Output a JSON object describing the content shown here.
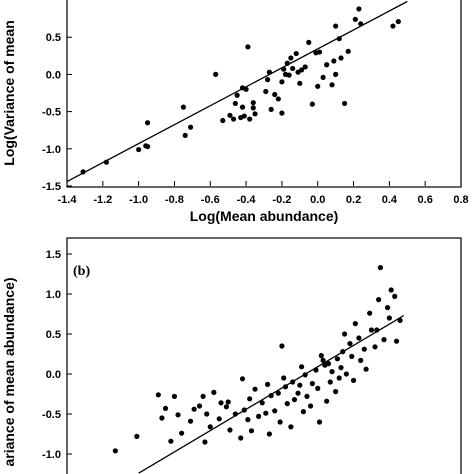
{
  "chart_data": [
    {
      "type": "scatter",
      "panel_label": "",
      "xlabel": "Log(Mean abundance)",
      "ylabel": "Log(Variance of mean",
      "xlim": [
        -1.4,
        0.8
      ],
      "ylim": [
        -1.5,
        1.0
      ],
      "xticks": [
        -1.4,
        -1.2,
        -1.0,
        -0.8,
        -0.6,
        -0.4,
        -0.2,
        0.0,
        0.2,
        0.4,
        0.6,
        0.8
      ],
      "xtick_labels": [
        "-1.4",
        "-1.2",
        "-1.0",
        "-0.8",
        "-0.6",
        "-0.4",
        "-0.2",
        "0.0",
        "0.2",
        "0.4",
        "0.6",
        "0.8"
      ],
      "yticks": [
        -1.5,
        -1.0,
        -0.5,
        0.0,
        0.5
      ],
      "ytick_labels": [
        "-1.5",
        "-1.0",
        "-0.5",
        "0.0",
        "0.5"
      ],
      "fit_line": {
        "x": [
          -1.4,
          0.5
        ],
        "y": [
          -1.44,
          0.98
        ]
      },
      "points": [
        [
          -1.31,
          -1.31
        ],
        [
          -1.18,
          -1.18
        ],
        [
          -1.0,
          -1.01
        ],
        [
          -0.96,
          -0.96
        ],
        [
          -0.95,
          -0.97
        ],
        [
          -0.95,
          -0.65
        ],
        [
          -0.75,
          -0.44
        ],
        [
          -0.74,
          -0.82
        ],
        [
          -0.71,
          -0.71
        ],
        [
          -0.57,
          0.0
        ],
        [
          -0.53,
          -0.62
        ],
        [
          -0.49,
          -0.55
        ],
        [
          -0.47,
          -0.6
        ],
        [
          -0.46,
          -0.39
        ],
        [
          -0.45,
          -0.28
        ],
        [
          -0.43,
          -0.58
        ],
        [
          -0.42,
          -0.44
        ],
        [
          -0.42,
          -0.18
        ],
        [
          -0.41,
          -0.56
        ],
        [
          -0.4,
          -0.2
        ],
        [
          -0.39,
          0.37
        ],
        [
          -0.38,
          -0.6
        ],
        [
          -0.36,
          -0.45
        ],
        [
          -0.36,
          -0.38
        ],
        [
          -0.35,
          -0.53
        ],
        [
          -0.29,
          -0.23
        ],
        [
          -0.28,
          -0.07
        ],
        [
          -0.27,
          0.03
        ],
        [
          -0.26,
          -0.47
        ],
        [
          -0.24,
          -0.27
        ],
        [
          -0.22,
          -0.33
        ],
        [
          -0.2,
          -0.1
        ],
        [
          -0.2,
          -0.52
        ],
        [
          -0.19,
          0.07
        ],
        [
          -0.18,
          0.0
        ],
        [
          -0.17,
          0.15
        ],
        [
          -0.16,
          -0.01
        ],
        [
          -0.15,
          0.22
        ],
        [
          -0.14,
          0.08
        ],
        [
          -0.12,
          0.28
        ],
        [
          -0.11,
          0.03
        ],
        [
          -0.1,
          -0.12
        ],
        [
          -0.09,
          0.06
        ],
        [
          -0.07,
          0.1
        ],
        [
          -0.05,
          0.43
        ],
        [
          -0.03,
          -0.4
        ],
        [
          -0.01,
          0.29
        ],
        [
          0.0,
          -0.16
        ],
        [
          0.01,
          0.3
        ],
        [
          0.03,
          -0.04
        ],
        [
          0.05,
          0.13
        ],
        [
          0.08,
          -0.14
        ],
        [
          0.09,
          0.18
        ],
        [
          0.1,
          0.0
        ],
        [
          0.1,
          0.65
        ],
        [
          0.12,
          0.48
        ],
        [
          0.13,
          0.22
        ],
        [
          0.15,
          -0.39
        ],
        [
          0.17,
          0.31
        ],
        [
          0.21,
          0.74
        ],
        [
          0.23,
          0.88
        ],
        [
          0.24,
          0.68
        ],
        [
          0.42,
          0.65
        ],
        [
          0.45,
          0.71
        ]
      ]
    },
    {
      "type": "scatter",
      "panel_label": "(b)",
      "xlabel": "",
      "ylabel": "ariance of mean abundance)",
      "xlim": [
        -1.4,
        0.8
      ],
      "ylim": [
        -1.25,
        1.5
      ],
      "xticks": [],
      "xtick_labels": [],
      "yticks": [
        -1.0,
        -0.5,
        0.0,
        0.5,
        1.0,
        1.5
      ],
      "ytick_labels": [
        "-1.0",
        "-0.5",
        "0.0",
        "0.5",
        "1.0",
        "1.5"
      ],
      "fit_line": {
        "x": [
          -1.0,
          0.48
        ],
        "y": [
          -1.24,
          0.73
        ]
      },
      "points": [
        [
          -1.13,
          -0.96
        ],
        [
          -1.01,
          -0.78
        ],
        [
          -0.89,
          -0.26
        ],
        [
          -0.87,
          -0.55
        ],
        [
          -0.85,
          -0.43
        ],
        [
          -0.82,
          -0.84
        ],
        [
          -0.8,
          -0.28
        ],
        [
          -0.78,
          -0.51
        ],
        [
          -0.76,
          -0.74
        ],
        [
          -0.71,
          -0.59
        ],
        [
          -0.69,
          -0.44
        ],
        [
          -0.66,
          -0.4
        ],
        [
          -0.63,
          -0.85
        ],
        [
          -0.62,
          -0.5
        ],
        [
          -0.6,
          -0.66
        ],
        [
          -0.58,
          -0.23
        ],
        [
          -0.55,
          -0.56
        ],
        [
          -0.54,
          -0.36
        ],
        [
          -0.51,
          -0.41
        ],
        [
          -0.49,
          -0.7
        ],
        [
          -0.46,
          -0.5
        ],
        [
          -0.43,
          -0.8
        ],
        [
          -0.42,
          -0.06
        ],
        [
          -0.41,
          -0.45
        ],
        [
          -0.38,
          -0.31
        ],
        [
          -0.37,
          -0.71
        ],
        [
          -0.35,
          -0.19
        ],
        [
          -0.33,
          -0.53
        ],
        [
          -0.31,
          -0.36
        ],
        [
          -0.28,
          -0.13
        ],
        [
          -0.27,
          -0.75
        ],
        [
          -0.26,
          -0.27
        ],
        [
          -0.24,
          -0.46
        ],
        [
          -0.22,
          -0.24
        ],
        [
          -0.21,
          -0.6
        ],
        [
          -0.2,
          0.35
        ],
        [
          -0.18,
          -0.16
        ],
        [
          -0.17,
          -0.37
        ],
        [
          -0.15,
          -0.66
        ],
        [
          -0.14,
          -0.1
        ],
        [
          -0.13,
          -0.32
        ],
        [
          -0.11,
          -0.24
        ],
        [
          -0.1,
          -0.14
        ],
        [
          -0.08,
          -0.47
        ],
        [
          -0.07,
          -0.01
        ],
        [
          -0.06,
          -0.28
        ],
        [
          -0.04,
          -0.4
        ],
        [
          -0.03,
          -0.12
        ],
        [
          -0.01,
          0.05
        ],
        [
          0.0,
          -0.18
        ],
        [
          0.01,
          -0.6
        ],
        [
          0.02,
          0.23
        ],
        [
          0.04,
          0.11
        ],
        [
          0.05,
          -0.34
        ],
        [
          0.06,
          0.13
        ],
        [
          0.08,
          0.03
        ],
        [
          0.1,
          -0.22
        ],
        [
          0.11,
          0.19
        ],
        [
          0.12,
          -0.05
        ],
        [
          0.14,
          0.28
        ],
        [
          0.15,
          0.5
        ],
        [
          0.16,
          0.0
        ],
        [
          0.18,
          0.38
        ],
        [
          0.19,
          0.22
        ],
        [
          0.2,
          -0.08
        ],
        [
          0.21,
          0.63
        ],
        [
          0.23,
          0.45
        ],
        [
          0.24,
          0.17
        ],
        [
          0.26,
          0.31
        ],
        [
          0.27,
          0.06
        ],
        [
          0.29,
          0.76
        ],
        [
          0.3,
          0.55
        ],
        [
          0.32,
          0.34
        ],
        [
          0.33,
          0.55
        ],
        [
          0.34,
          0.93
        ],
        [
          0.35,
          1.33
        ],
        [
          0.37,
          0.43
        ],
        [
          0.39,
          0.83
        ],
        [
          0.4,
          0.7
        ],
        [
          0.41,
          1.05
        ],
        [
          0.43,
          0.97
        ],
        [
          0.44,
          0.41
        ],
        [
          0.46,
          0.67
        ],
        [
          -0.39,
          -0.57
        ],
        [
          -0.5,
          -0.35
        ],
        [
          -0.64,
          -0.28
        ],
        [
          -0.29,
          -0.49
        ],
        [
          -0.19,
          -0.05
        ],
        [
          -0.09,
          0.09
        ],
        [
          0.03,
          0.17
        ],
        [
          0.07,
          -0.1
        ],
        [
          0.13,
          0.08
        ]
      ]
    }
  ]
}
